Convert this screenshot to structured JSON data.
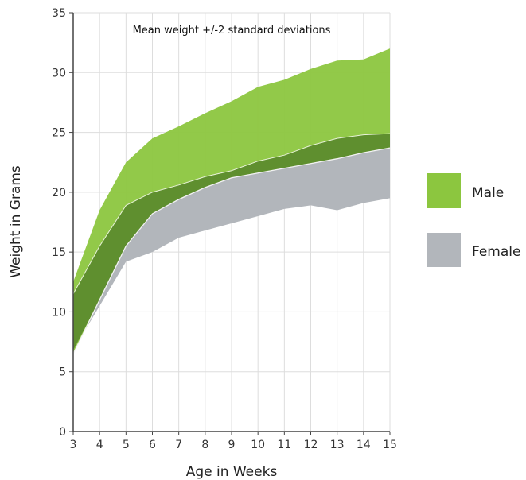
{
  "chart_data": {
    "type": "area",
    "title": "Mean weight +/-2 standard deviations",
    "xlabel": "Age in Weeks",
    "ylabel": "Weight in Grams",
    "xlim": [
      3,
      15
    ],
    "ylim": [
      0,
      35
    ],
    "x_ticks": [
      3,
      4,
      5,
      6,
      7,
      8,
      9,
      10,
      11,
      12,
      13,
      14,
      15
    ],
    "y_ticks": [
      0,
      5,
      10,
      15,
      20,
      25,
      30,
      35
    ],
    "grid": true,
    "legend_position": "right",
    "x": [
      3,
      4,
      5,
      6,
      7,
      8,
      9,
      10,
      11,
      12,
      13,
      14,
      15
    ],
    "series": [
      {
        "name": "Female",
        "color": "#b2b6bb",
        "lower": [
          6.8,
          10.5,
          14.2,
          15.0,
          16.2,
          16.8,
          17.4,
          18.0,
          18.6,
          18.9,
          18.5,
          19.1,
          19.5
        ],
        "upper": [
          11.5,
          15.5,
          18.9,
          20.0,
          20.6,
          21.3,
          21.8,
          22.6,
          23.1,
          23.9,
          24.5,
          24.8,
          24.9
        ]
      },
      {
        "name": "Male",
        "color": "#8cc63f",
        "lower": [
          6.5,
          11.0,
          15.5,
          18.2,
          19.4,
          20.4,
          21.2,
          21.6,
          22.0,
          22.4,
          22.8,
          23.3,
          23.7
        ],
        "upper": [
          12.5,
          18.5,
          22.5,
          24.5,
          25.5,
          26.6,
          27.6,
          28.8,
          29.4,
          30.3,
          31.0,
          31.1,
          32.0
        ]
      }
    ]
  }
}
